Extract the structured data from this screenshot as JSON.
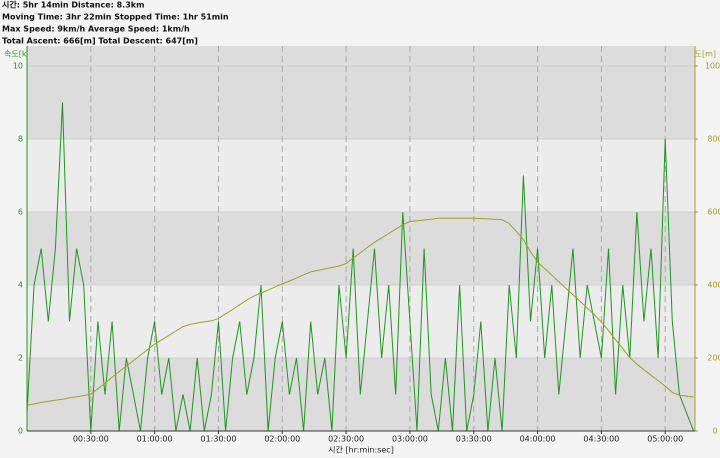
{
  "chart_data": {
    "type": "line",
    "header": [
      "시간: 5hr 14min  Distance: 8.3km",
      "Moving Time: 3hr 22min  Stopped Time: 1hr 51min",
      "Max Speed: 9km/h  Average Speed: 1km/h",
      "Total Ascent: 666[m]  Total Descent: 647[m]"
    ],
    "y_label": "속도[km/h]",
    "y2_label": "고도[m]",
    "x_label": "시간 [hr:min:sec]",
    "xlim": [
      0,
      18840
    ],
    "ylim": [
      0,
      10
    ],
    "y2lim": [
      0,
      1000
    ],
    "xticks": [
      {
        "value": 1800,
        "label": "00:30:00"
      },
      {
        "value": 3600,
        "label": "01:00:00"
      },
      {
        "value": 5400,
        "label": "01:30:00"
      },
      {
        "value": 7200,
        "label": "02:00:00"
      },
      {
        "value": 9000,
        "label": "02:30:00"
      },
      {
        "value": 10800,
        "label": "03:00:00"
      },
      {
        "value": 12600,
        "label": "03:30:00"
      },
      {
        "value": 14400,
        "label": "04:00:00"
      },
      {
        "value": 16200,
        "label": "04:30:00"
      },
      {
        "value": 18000,
        "label": "05:00:00"
      }
    ],
    "yticks": [
      0,
      2,
      4,
      6,
      8,
      10
    ],
    "y2ticks": [
      0,
      200,
      400,
      600,
      800,
      1000
    ],
    "grid": true,
    "x": [
      0,
      200,
      400,
      600,
      800,
      1000,
      1200,
      1400,
      1600,
      1800,
      2000,
      2200,
      2400,
      2600,
      2800,
      3000,
      3200,
      3400,
      3600,
      3800,
      4000,
      4200,
      4400,
      4600,
      4800,
      5000,
      5200,
      5400,
      5600,
      5800,
      6000,
      6200,
      6400,
      6600,
      6800,
      7000,
      7200,
      7400,
      7600,
      7800,
      8000,
      8200,
      8400,
      8600,
      8800,
      9000,
      9200,
      9400,
      9600,
      9800,
      10000,
      10200,
      10400,
      10600,
      10800,
      11000,
      11200,
      11400,
      11600,
      11800,
      12000,
      12200,
      12400,
      12600,
      12800,
      13000,
      13200,
      13400,
      13600,
      13800,
      14000,
      14200,
      14400,
      14600,
      14800,
      15000,
      15200,
      15400,
      15600,
      15800,
      16000,
      16200,
      16400,
      16600,
      16800,
      17000,
      17200,
      17400,
      17600,
      17800,
      18000,
      18200,
      18400,
      18600,
      18800
    ],
    "series": [
      {
        "name": "속도",
        "color": "#1a9a1a",
        "axis": "y",
        "values": [
          0.5,
          4,
          5,
          3,
          5,
          9,
          3,
          5,
          4,
          0,
          3,
          1,
          3,
          0,
          2,
          1,
          0,
          2,
          3,
          1,
          2,
          0,
          1,
          0,
          2,
          0,
          1,
          3,
          0,
          2,
          3,
          1,
          2,
          4,
          0,
          2,
          3,
          1,
          2,
          0,
          3,
          1,
          2,
          0,
          4,
          2,
          5,
          1,
          3,
          5,
          2,
          4,
          1,
          6,
          3,
          0,
          5,
          1,
          0,
          2,
          0,
          4,
          0,
          1,
          3,
          0,
          2,
          0,
          4,
          2,
          7,
          3,
          5,
          2,
          4,
          1,
          3,
          5,
          2,
          4,
          3,
          2,
          5,
          1,
          4,
          2,
          6,
          3,
          5,
          2,
          8,
          3,
          1,
          0.5,
          0
        ]
      },
      {
        "name": "고도",
        "color": "#a0a020",
        "axis": "y2",
        "values": [
          71,
          74,
          78,
          81,
          84,
          87,
          91,
          94,
          97,
          101,
          116,
          131,
          147,
          163,
          178,
          193,
          208,
          223,
          238,
          250,
          262,
          274,
          286,
          292,
          296,
          299,
          302,
          308,
          321,
          333,
          346,
          359,
          370,
          378,
          386,
          395,
          403,
          411,
          419,
          428,
          436,
          440,
          444,
          448,
          452,
          459,
          474,
          488,
          503,
          517,
          529,
          541,
          553,
          565,
          574,
          576,
          578,
          580,
          583,
          583,
          583,
          583,
          583,
          583,
          582,
          581,
          580,
          579,
          568,
          547,
          524,
          491,
          463,
          445,
          427,
          409,
          391,
          373,
          355,
          337,
          319,
          299,
          275,
          250,
          226,
          201,
          183,
          168,
          153,
          138,
          123,
          106,
          98,
          96,
          93
        ]
      }
    ]
  }
}
